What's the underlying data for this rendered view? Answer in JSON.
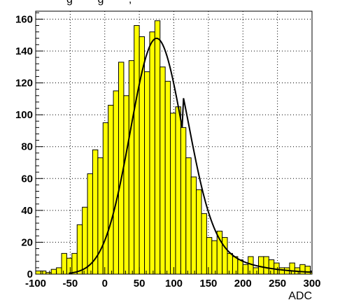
{
  "chart_data": {
    "type": "bar",
    "title_fragment": "g        g        ,",
    "xlabel": "ADC",
    "ylabel": "",
    "xlim": [
      -100,
      300
    ],
    "ylim": [
      0,
      165
    ],
    "grid": true,
    "x_ticks": [
      -100,
      -50,
      0,
      50,
      100,
      150,
      200,
      250,
      300
    ],
    "y_ticks": [
      0,
      20,
      40,
      60,
      80,
      100,
      120,
      140,
      160
    ],
    "x_tick_labels": [
      "-100",
      "-50",
      "0",
      "50",
      "100",
      "150",
      "200",
      "250",
      "300"
    ],
    "y_tick_labels": [
      "0",
      "20",
      "40",
      "60",
      "80",
      "100",
      "120",
      "140",
      "160"
    ],
    "bin_edges_start": -100,
    "bin_width": 7.5,
    "bin_counts": [
      2,
      2,
      1,
      3,
      4,
      13,
      10,
      13,
      31,
      42,
      63,
      78,
      73,
      95,
      106,
      115,
      133,
      112,
      134,
      156,
      149,
      127,
      152,
      159,
      130,
      121,
      101,
      105,
      92,
      73,
      61,
      53,
      38,
      23,
      21,
      27,
      23,
      13,
      11,
      9,
      6,
      11,
      4,
      11,
      11,
      9,
      7,
      4,
      4,
      7,
      4,
      6,
      5,
      2
    ],
    "fit": {
      "type": "gaussian_with_tail",
      "amplitude": 148,
      "mean": 75,
      "sigma": 38,
      "tail_amplitude": 18,
      "tail_decay": 55
    },
    "colors": {
      "bar_fill": "#ffff00",
      "bar_edge": "#000000",
      "fit_line": "#000000",
      "grid": "#000000"
    }
  }
}
